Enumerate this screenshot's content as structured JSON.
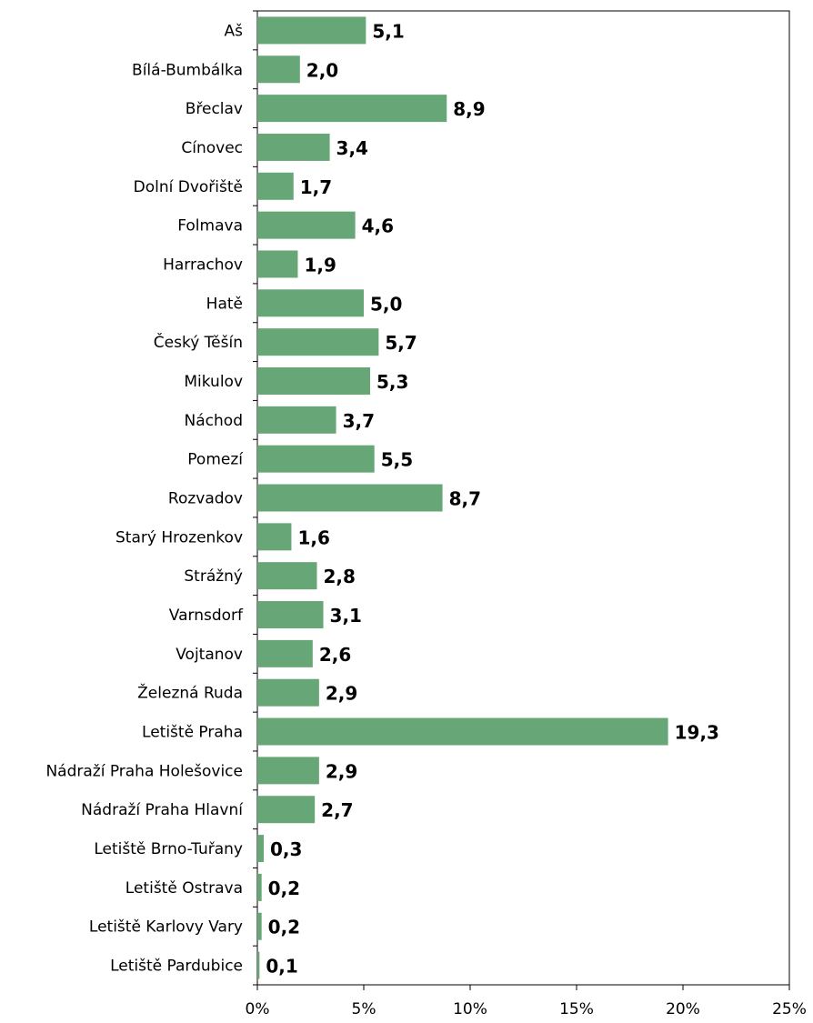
{
  "chart_data": {
    "type": "bar",
    "orientation": "horizontal",
    "categories": [
      "Aš",
      "Bílá-Bumbálka",
      "Břeclav",
      "Cínovec",
      "Dolní Dvořiště",
      "Folmava",
      "Harrachov",
      "Hatě",
      "Český Těšín",
      "Mikulov",
      "Náchod",
      "Pomezí",
      "Rozvadov",
      "Starý Hrozenkov",
      "Strážný",
      "Varnsdorf",
      "Vojtanov",
      "Železná Ruda",
      "Letiště Praha",
      "Nádraží Praha Holešovice",
      "Nádraží Praha Hlavní",
      "Letiště Brno-Tuřany",
      "Letiště Ostrava",
      "Letiště Karlovy Vary",
      "Letiště Pardubice"
    ],
    "values": [
      5.1,
      2.0,
      8.9,
      3.4,
      1.7,
      4.6,
      1.9,
      5.0,
      5.7,
      5.3,
      3.7,
      5.5,
      8.7,
      1.6,
      2.8,
      3.1,
      2.6,
      2.9,
      19.3,
      2.9,
      2.7,
      0.3,
      0.2,
      0.2,
      0.1
    ],
    "value_labels": [
      "5,1",
      "2,0",
      "8,9",
      "3,4",
      "1,7",
      "4,6",
      "1,9",
      "5,0",
      "5,7",
      "5,3",
      "3,7",
      "5,5",
      "8,7",
      "1,6",
      "2,8",
      "3,1",
      "2,6",
      "2,9",
      "19,3",
      "2,9",
      "2,7",
      "0,3",
      "0,2",
      "0,2",
      "0,1"
    ],
    "xlim": [
      0,
      25
    ],
    "x_ticks": [
      0,
      5,
      10,
      15,
      20,
      25
    ],
    "x_tick_labels": [
      "0%",
      "5%",
      "10%",
      "15%",
      "20%",
      "25%"
    ],
    "title": "",
    "xlabel": "",
    "ylabel": "",
    "grid": false,
    "legend": "none",
    "bar_color": "#67a777"
  }
}
